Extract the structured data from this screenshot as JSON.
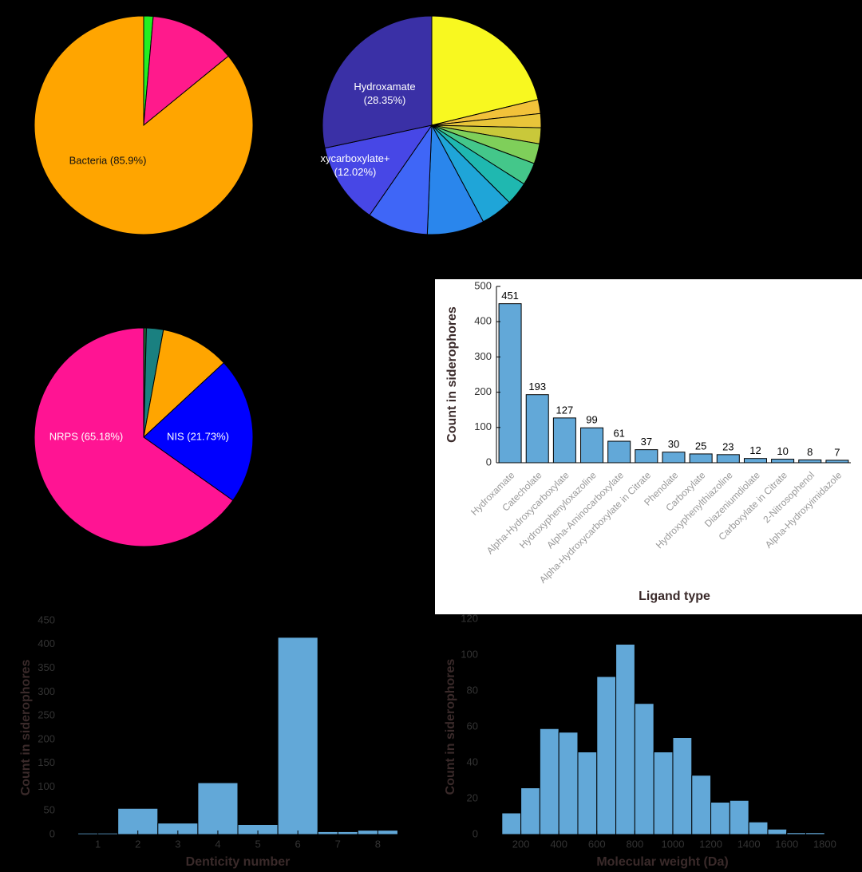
{
  "chart_data": [
    {
      "type": "pie",
      "labels": [
        null,
        null,
        "Bacteria (85.9%)"
      ],
      "values": [
        1.4,
        12.7,
        85.9
      ],
      "colors": [
        "#22ee22",
        "#ff1a8c",
        "#ffa500"
      ]
    },
    {
      "type": "pie",
      "labels": [
        null,
        null,
        null,
        null,
        null,
        null,
        null,
        null,
        null,
        null,
        [
          "xycarboxylate+",
          "(12.02%)"
        ],
        [
          "Hydroxamate",
          "(28.35%)"
        ]
      ],
      "values": [
        21.21,
        2.08,
        2.08,
        2.36,
        2.97,
        3.33,
        3.44,
        4.72,
        8.47,
        8.97,
        12.02,
        28.35
      ],
      "colors": [
        "#f8f820",
        "#f2c23a",
        "#e9c53a",
        "#c9c83a",
        "#7fcf5a",
        "#44c78a",
        "#1fb8b0",
        "#1fa5d8",
        "#2a86ec",
        "#3f66f7",
        "#4747e6",
        "#3a30a6"
      ]
    },
    {
      "type": "pie",
      "labels": [
        null,
        null,
        null,
        "NIS (21.73%)",
        "NRPS (65.18%)"
      ],
      "values": [
        0.4,
        2.5,
        10.19,
        21.73,
        65.18
      ],
      "colors": [
        "#1a6d3a",
        "#1a8080",
        "#ffa500",
        "#0000ff",
        "#ff1493"
      ]
    },
    {
      "type": "bar",
      "categories": [
        "Hydroxamate",
        "Catecholate",
        "Alpha-Hydroxycarboxylate",
        "Hydroxyphenyloxazoline",
        "Alpha-Aminocarboxylate",
        "Alpha-Hydroxycarboxylate in Citrate",
        "Phenolate",
        "Carboxylate",
        "Hydroxyphenylthiazoline",
        "Diazeniumdiolate",
        "Carboxylate in Citrate",
        "2-Nitrosophenol",
        "Alpha-Hydroxyimidazole"
      ],
      "values": [
        451,
        193,
        127,
        99,
        61,
        37,
        30,
        25,
        23,
        12,
        10,
        8,
        7
      ],
      "color": "#62a8d8",
      "ylim": [
        0,
        500
      ],
      "yticks": [
        0,
        100,
        200,
        300,
        400,
        500
      ],
      "xlabel": "Ligand type",
      "ylabel": "Count in siderophores"
    },
    {
      "type": "histogram",
      "bins": [
        0.5,
        1.5,
        2.5,
        3.5,
        4.5,
        5.5,
        6.5,
        7.5,
        8.5
      ],
      "values": [
        3,
        55,
        24,
        109,
        21,
        415,
        6,
        9
      ],
      "color": "#62a8d8",
      "xlim": [
        0.05,
        8.85
      ],
      "ylim": [
        0,
        450
      ],
      "xticks": [
        1,
        2,
        3,
        4,
        5,
        6,
        7,
        8
      ],
      "yticks": [
        0,
        50,
        100,
        150,
        200,
        250,
        300,
        350,
        400,
        450
      ],
      "xlabel": "Denticity number",
      "ylabel": "Count in siderophores"
    },
    {
      "type": "histogram",
      "bins": [
        100,
        200,
        300,
        400,
        500,
        600,
        700,
        800,
        900,
        1000,
        1100,
        1200,
        1300,
        1400,
        1500,
        1600,
        1700,
        1800
      ],
      "values": [
        12,
        26,
        59,
        57,
        46,
        88,
        106,
        73,
        46,
        54,
        33,
        18,
        19,
        7,
        3,
        1,
        1
      ],
      "color": "#62a8d8",
      "xlim": [
        0,
        1870
      ],
      "ylim": [
        0,
        120
      ],
      "xticks": [
        200,
        400,
        600,
        800,
        1000,
        1200,
        1400,
        1600,
        1800
      ],
      "yticks": [
        0,
        20,
        40,
        60,
        80,
        100,
        120
      ],
      "xlabel": "Molecular weight (Da)",
      "ylabel": "Count in siderophores"
    }
  ]
}
